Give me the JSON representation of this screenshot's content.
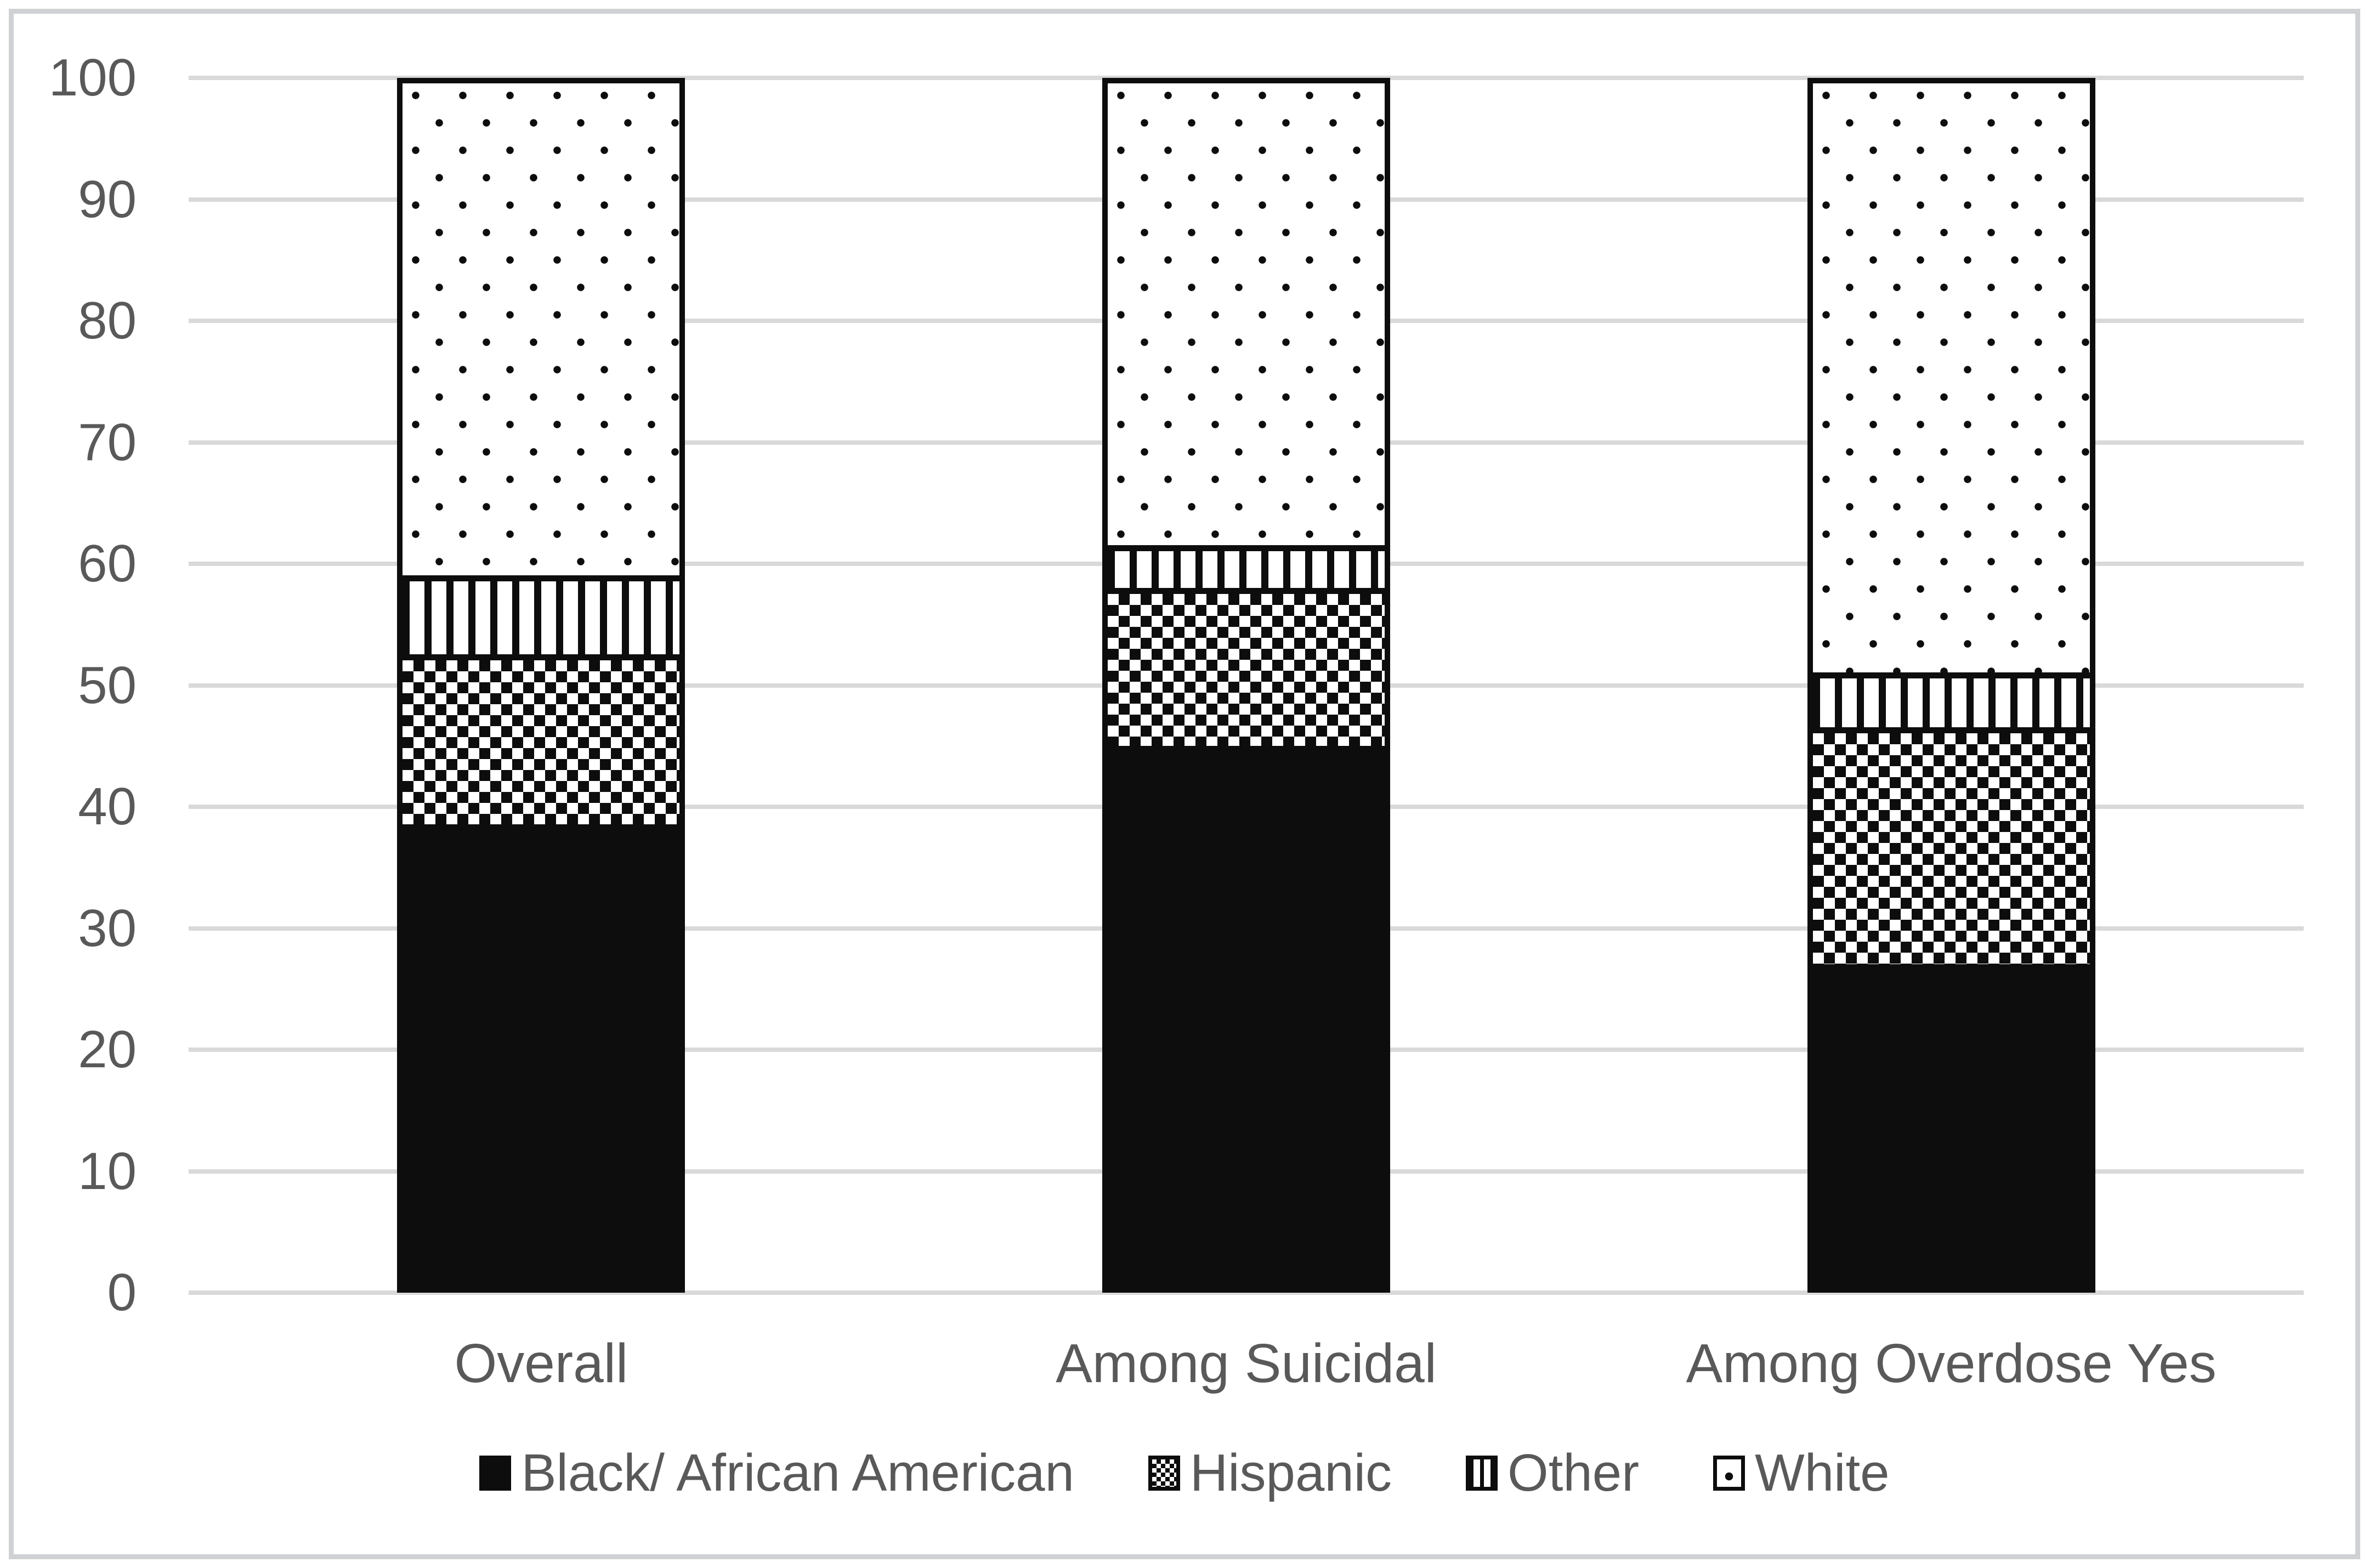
{
  "chart_data": {
    "type": "bar",
    "subtype": "stacked-100",
    "title": "",
    "xlabel": "",
    "ylabel": "",
    "categories": [
      "Overall",
      "Among Suicidal",
      "Among Overdose Yes"
    ],
    "series": [
      {
        "name": "Black/ African American",
        "pattern": "solid",
        "values": [
          38.5,
          45.0,
          27.0
        ]
      },
      {
        "name": "Hispanic",
        "pattern": "checker",
        "values": [
          14.0,
          13.0,
          19.5
        ]
      },
      {
        "name": "Other",
        "pattern": "vstripes",
        "values": [
          6.5,
          3.5,
          4.5
        ]
      },
      {
        "name": "White",
        "pattern": "dots",
        "values": [
          41.0,
          38.5,
          49.0
        ]
      }
    ],
    "ylim": [
      0,
      100
    ],
    "yticks": [
      0,
      10,
      20,
      30,
      40,
      50,
      60,
      70,
      80,
      90,
      100
    ],
    "grid": true,
    "legend_position": "bottom",
    "colors": {
      "bar_foreground": "#0d0d0d",
      "background": "#ffffff",
      "gridline": "#d9d9d9",
      "frame_border": "#cfd1d4",
      "tick_label": "#595959"
    }
  }
}
